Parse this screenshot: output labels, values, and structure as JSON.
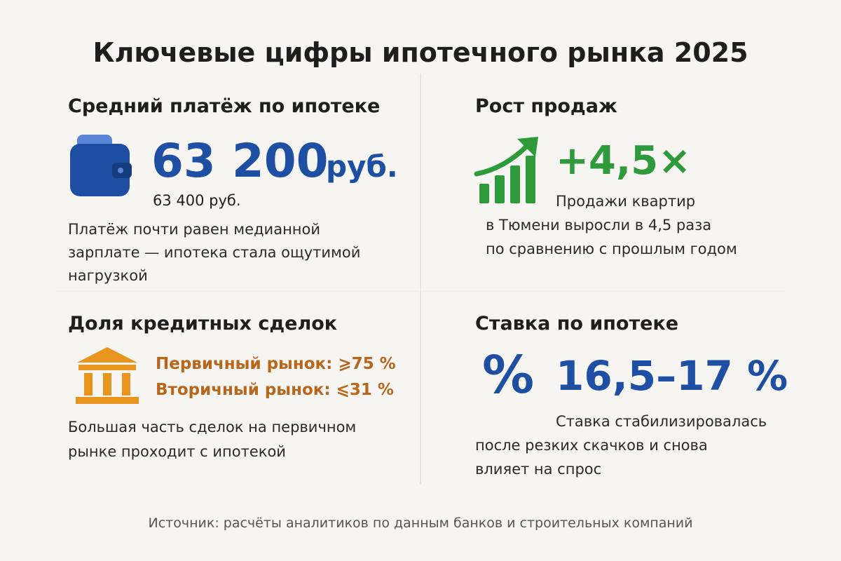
{
  "title": "Ключевые цифры ипотечного рынка 2025",
  "panels": [
    {
      "heading": "Средний платёж по ипотеке",
      "value": "63 200",
      "unit": "руб.",
      "sub": "63 400 руб.",
      "description": [
        "Платёж почти равен медианной",
        "зарплате — ипотека стала ощутимой",
        "нагрузкой"
      ]
    },
    {
      "heading": "Рост продаж",
      "value": "+4,5×",
      "description": [
        "Продажи квартир",
        "в Тюмени выросли в 4,5 раза",
        "по сравнению с прошлым годом"
      ]
    },
    {
      "heading": "Доля кредитных сделок",
      "lines": [
        "Первичный рынок: ⩾75 %",
        "Вторичный рынок: ⩽31 %"
      ],
      "description": [
        "Большая часть сделок на первичном",
        "рынке проходит с ипотекой"
      ]
    },
    {
      "heading": "Ставка по ипотеке",
      "icon": "%",
      "value": "16,5–17 %",
      "description": [
        "Ставка стабилизировалась",
        "после резких скачков и снова",
        "влияет на спрос"
      ]
    }
  ],
  "source": "Источник: расчёты аналитиков по данным банков и строительных компаний"
}
